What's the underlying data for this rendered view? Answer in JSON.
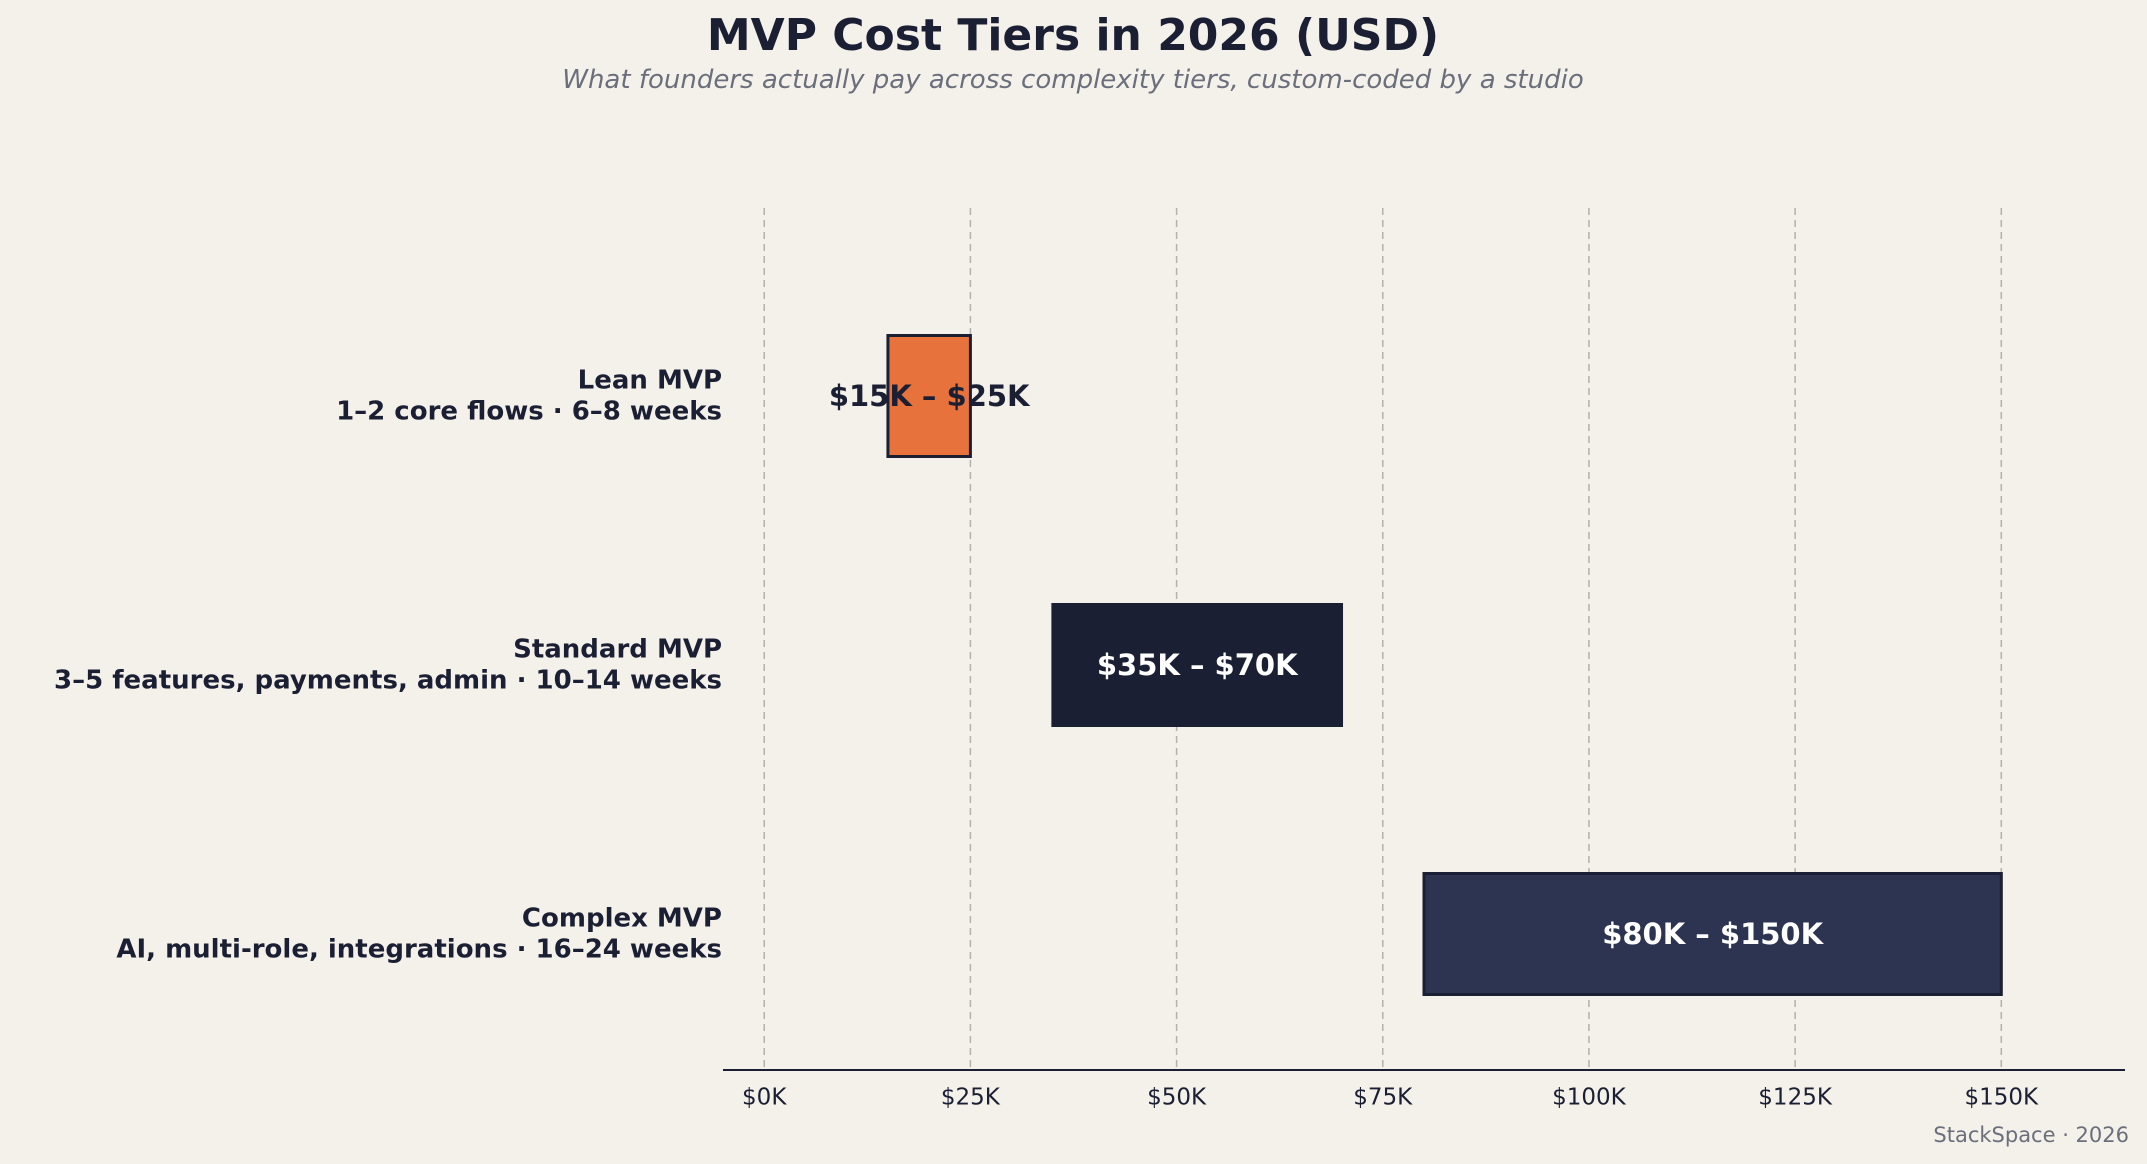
{
  "chart_data": {
    "type": "bar",
    "orientation": "horizontal",
    "title": "MVP Cost Tiers in 2026 (USD)",
    "subtitle": "What founders actually pay across complexity tiers, custom-coded by a studio",
    "categories": [
      {
        "name": "Lean MVP",
        "detail": "1–2 core flows · 6–8 weeks"
      },
      {
        "name": "Standard MVP",
        "detail": "3–5 features, payments, admin · 10–14 weeks"
      },
      {
        "name": "Complex MVP",
        "detail": "AI, multi-role, integrations · 16–24 weeks"
      }
    ],
    "ranges": [
      {
        "low": 15000,
        "high": 25000,
        "label": "$15K – $25K",
        "color": "#e8723c",
        "label_color": "#1b1f33"
      },
      {
        "low": 35000,
        "high": 70000,
        "label": "$35K – $70K",
        "color": "#1b1f33",
        "label_color": "#ffffff"
      },
      {
        "low": 80000,
        "high": 150000,
        "label": "$80K – $150K",
        "color": "#2c3452",
        "label_color": "#ffffff"
      }
    ],
    "xlim": [
      -5000,
      165000
    ],
    "xticks": [
      0,
      25000,
      50000,
      75000,
      100000,
      125000,
      150000
    ],
    "xtick_labels": [
      "$0K",
      "$25K",
      "$50K",
      "$75K",
      "$100K",
      "$125K",
      "$150K"
    ],
    "grid": "vertical dashed",
    "xlabel": "",
    "ylabel": "",
    "source": "StackSpace · 2026",
    "colors": {
      "background": "#f4f0ea",
      "text": "#1b1f33",
      "muted": "#6b6f7c",
      "grid": "#b3b1ad",
      "outline": "#1b1f33"
    }
  }
}
